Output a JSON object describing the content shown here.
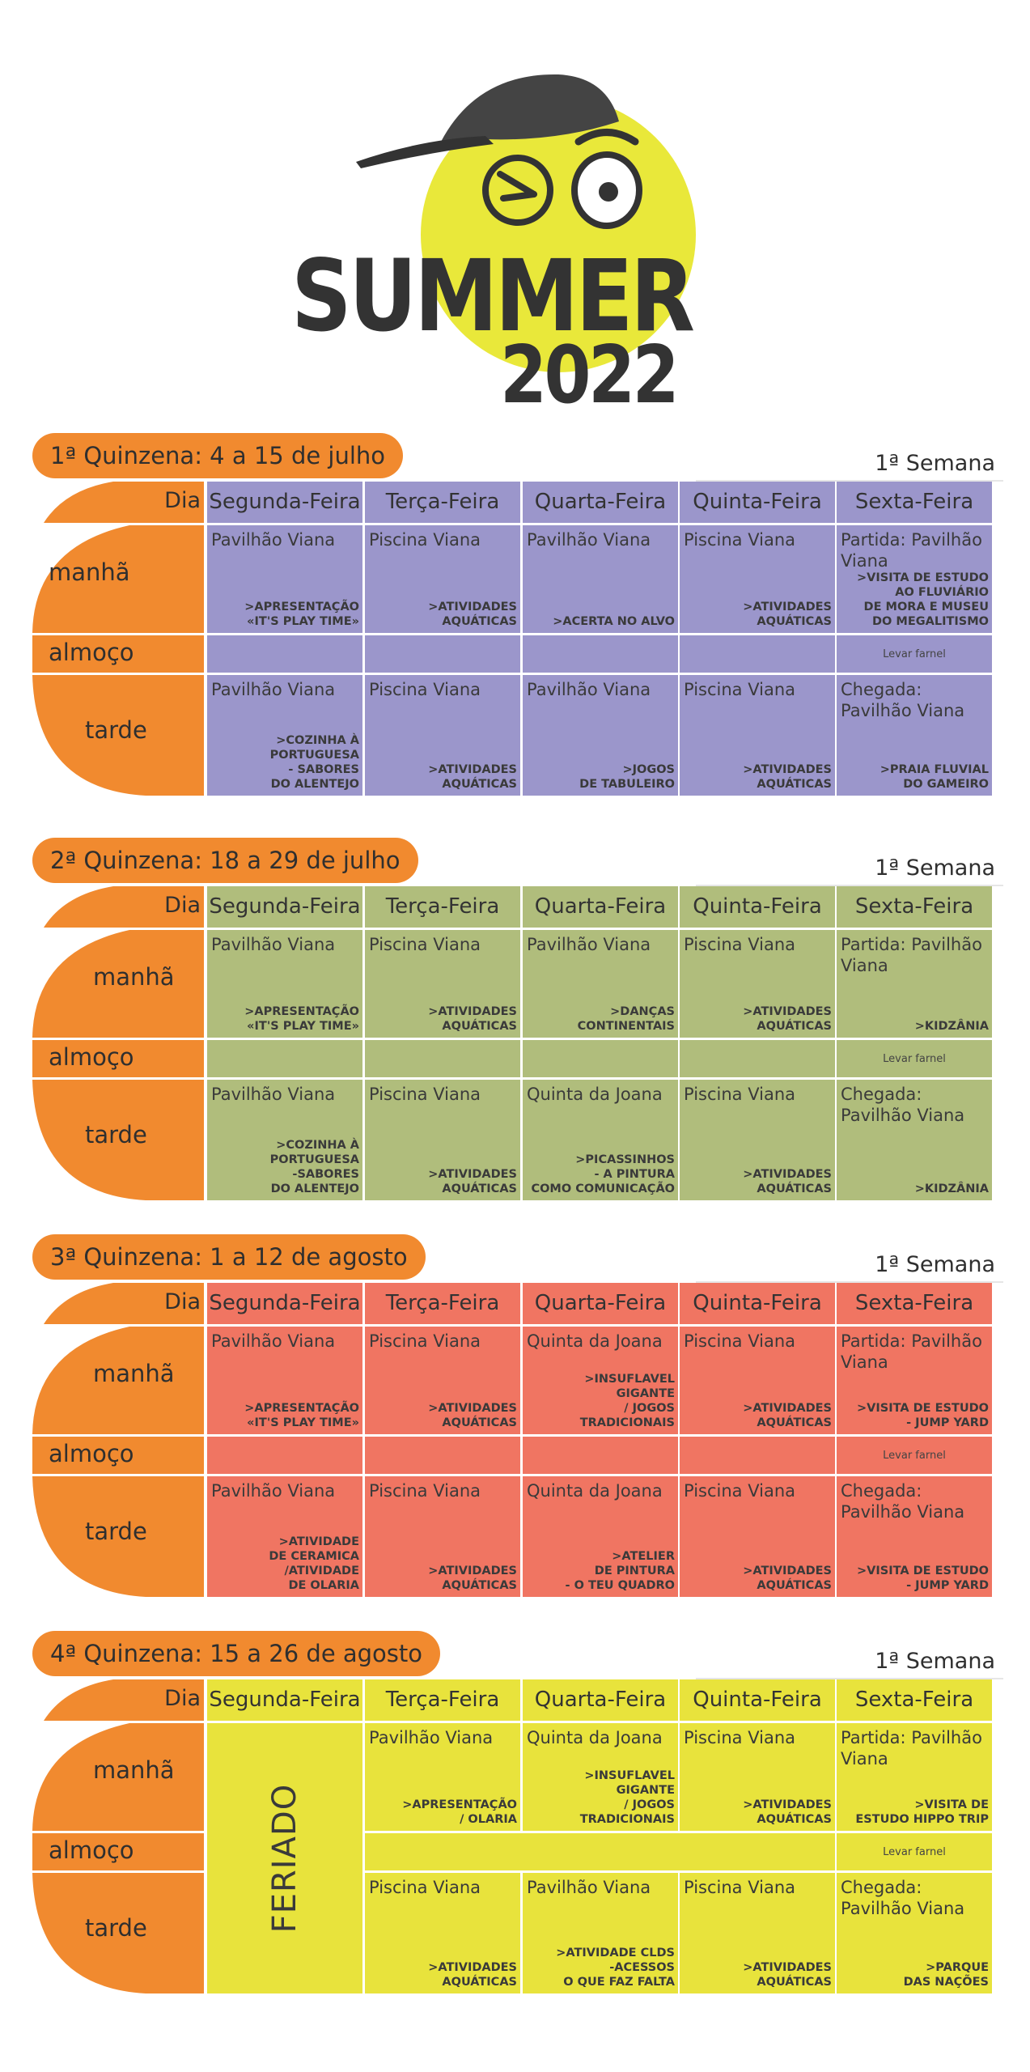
{
  "logo": {
    "word": "SUMMER",
    "year": "2022",
    "ball_color": "#e9e83a",
    "cap_color": "#444444"
  },
  "week_label": "1ª Semana",
  "headers": {
    "dia": "Dia",
    "days": [
      "Segunda-Feira",
      "Terça-Feira",
      "Quarta-Feira",
      "Quinta-Feira",
      "Sexta-Feira"
    ]
  },
  "row_labels": {
    "manha": "manhã",
    "almoco": "almoço",
    "tarde": "tarde"
  },
  "label_color": "#f18a2f",
  "sections": [
    {
      "title": "1ª Quinzena: 4 a 15 de julho",
      "color": "#9b96cb",
      "manha": [
        {
          "loc": "Pavilhão Viana",
          "act": ">APRESENTAÇÃO\n«IT'S PLAY TIME»"
        },
        {
          "loc": "Piscina Viana",
          "act": ">ATIVIDADES\nAQUÁTICAS"
        },
        {
          "loc": "Pavilhão Viana",
          "act": ">ACERTA NO ALVO"
        },
        {
          "loc": "Piscina Viana",
          "act": ">ATIVIDADES\nAQUÁTICAS"
        },
        {
          "loc": "Partida: Pavilhão Viana",
          "act": ">VISITA DE ESTUDO\nAO FLUVIÁRIO\nDE MORA E MUSEU\nDO MEGALITISMO"
        }
      ],
      "almoco": [
        "",
        "",
        "",
        "",
        "Levar farnel"
      ],
      "tarde": [
        {
          "loc": "Pavilhão Viana",
          "act": ">COZINHA À\nPORTUGUESA\n- SABORES\nDO ALENTEJO"
        },
        {
          "loc": "Piscina Viana",
          "act": ">ATIVIDADES\nAQUÁTICAS"
        },
        {
          "loc": "Pavilhão Viana",
          "act": ">JOGOS\nDE TABULEIRO"
        },
        {
          "loc": "Piscina Viana",
          "act": ">ATIVIDADES\nAQUÁTICAS"
        },
        {
          "loc": "Chegada: Pavilhão Viana",
          "act": ">PRAIA FLUVIAL\nDO GAMEIRO"
        }
      ]
    },
    {
      "title": "2ª Quinzena: 18 a 29 de julho",
      "color": "#b0bd7c",
      "manha": [
        {
          "loc": "Pavilhão Viana",
          "act": ">APRESENTAÇÃO\n«IT'S PLAY TIME»"
        },
        {
          "loc": "Piscina Viana",
          "act": ">ATIVIDADES\nAQUÁTICAS"
        },
        {
          "loc": "Pavilhão Viana",
          "act": ">DANÇAS\nCONTINENTAIS"
        },
        {
          "loc": "Piscina Viana",
          "act": ">ATIVIDADES\nAQUÁTICAS"
        },
        {
          "loc": "Partida: Pavilhão Viana",
          "act": ">KIDZÂNIA"
        }
      ],
      "almoco": [
        "",
        "",
        "",
        "",
        "Levar farnel"
      ],
      "tarde": [
        {
          "loc": "Pavilhão Viana",
          "act": ">COZINHA À\nPORTUGUESA\n-SABORES\nDO ALENTEJO"
        },
        {
          "loc": "Piscina Viana",
          "act": ">ATIVIDADES\nAQUÁTICAS"
        },
        {
          "loc": "Quinta da Joana",
          "act": ">PICASSINHOS\n- A PINTURA\nCOMO COMUNICAÇÃO"
        },
        {
          "loc": "Piscina Viana",
          "act": ">ATIVIDADES\nAQUÁTICAS"
        },
        {
          "loc": "Chegada: Pavilhão Viana",
          "act": ">KIDZÂNIA"
        }
      ]
    },
    {
      "title": "3ª Quinzena: 1 a 12 de agosto",
      "color": "#f07562",
      "manha": [
        {
          "loc": "Pavilhão Viana",
          "act": ">APRESENTAÇÃO\n«IT'S PLAY TIME»"
        },
        {
          "loc": "Piscina Viana",
          "act": ">ATIVIDADES\nAQUÁTICAS"
        },
        {
          "loc": "Quinta da Joana",
          "act": ">INSUFLAVEL\nGIGANTE\n/ JOGOS\nTRADICIONAIS"
        },
        {
          "loc": "Piscina Viana",
          "act": ">ATIVIDADES\nAQUÁTICAS"
        },
        {
          "loc": "Partida: Pavilhão Viana",
          "act": ">VISITA DE ESTUDO\n- JUMP YARD"
        }
      ],
      "almoco": [
        "",
        "",
        "",
        "",
        "Levar farnel"
      ],
      "tarde": [
        {
          "loc": "Pavilhão Viana",
          "act": ">ATIVIDADE\nDE CERAMICA\n/ATIVIDADE\nDE OLARIA"
        },
        {
          "loc": "Piscina Viana",
          "act": ">ATIVIDADES\nAQUÁTICAS"
        },
        {
          "loc": "Quinta da Joana",
          "act": ">ATELIER\nDE PINTURA\n- O TEU QUADRO"
        },
        {
          "loc": "Piscina Viana",
          "act": ">ATIVIDADES\nAQUÁTICAS"
        },
        {
          "loc": "Chegada: Pavilhão Viana",
          "act": ">VISITA DE ESTUDO\n- JUMP YARD"
        }
      ]
    },
    {
      "title": "4ª Quinzena: 15 a 26 de agosto",
      "color": "#e8e33c",
      "feriado": "FERIADO",
      "manha": [
        null,
        {
          "loc": "Pavilhão Viana",
          "act": ">APRESENTAÇÃO\n/ OLARIA"
        },
        {
          "loc": "Quinta da Joana",
          "act": ">INSUFLAVEL\nGIGANTE\n/ JOGOS\nTRADICIONAIS"
        },
        {
          "loc": "Piscina Viana",
          "act": ">ATIVIDADES\nAQUÁTICAS"
        },
        {
          "loc": "Partida: Pavilhão Viana",
          "act": ">VISITA DE\nESTUDO HIPPO TRIP"
        }
      ],
      "almoco": [
        null,
        "",
        "",
        "",
        "Levar farnel"
      ],
      "tarde": [
        null,
        {
          "loc": "Piscina Viana",
          "act": ">ATIVIDADES\nAQUÁTICAS"
        },
        {
          "loc": "Pavilhão Viana",
          "act": ">ATIVIDADE CLDS\n-ACESSOS\nO QUE FAZ FALTA"
        },
        {
          "loc": "Piscina Viana",
          "act": ">ATIVIDADES\nAQUÁTICAS"
        },
        {
          "loc": "Chegada: Pavilhão Viana",
          "act": ">PARQUE\nDAS NAÇÕES"
        }
      ]
    }
  ]
}
